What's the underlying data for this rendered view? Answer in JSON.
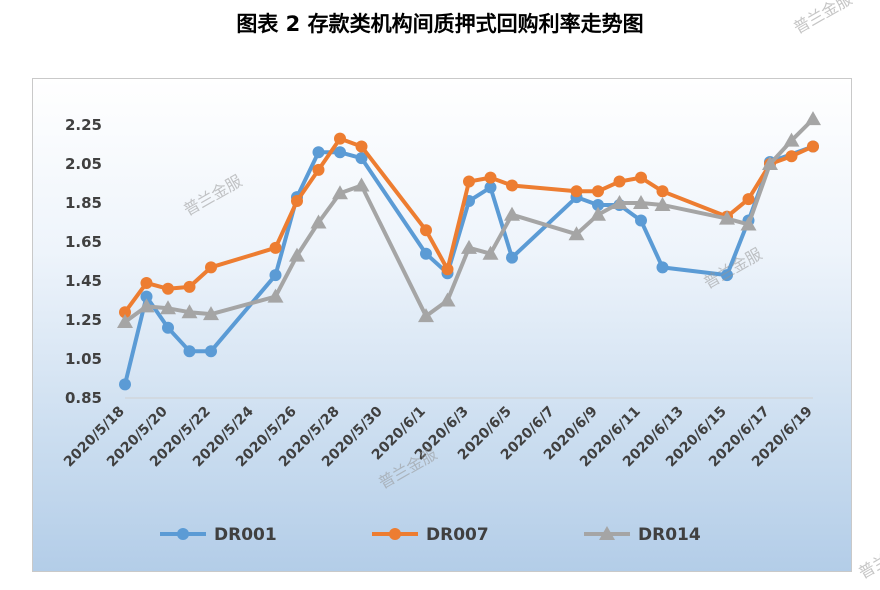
{
  "page": {
    "title": "图表 2  存款类机构间质押式回购利率走势图"
  },
  "watermark": {
    "text": "普兰金服"
  },
  "chart_data": {
    "type": "line",
    "title": "",
    "xlabel": "",
    "ylabel": "",
    "ylim": [
      0.85,
      2.25
    ],
    "y_ticks": [
      0.85,
      1.05,
      1.25,
      1.45,
      1.65,
      1.85,
      2.05,
      2.25
    ],
    "x_tick_labels": [
      "2020/5/18",
      "2020/5/20",
      "2020/5/22",
      "2020/5/24",
      "2020/5/26",
      "2020/5/28",
      "2020/5/30",
      "2020/6/1",
      "2020/6/3",
      "2020/6/5",
      "2020/6/7",
      "2020/6/9",
      "2020/6/11",
      "2020/6/13",
      "2020/6/15",
      "2020/6/17",
      "2020/6/19"
    ],
    "date_range": [
      "2020/5/18",
      "2020/6/19"
    ],
    "legend_position": "bottom",
    "grid": false,
    "series": [
      {
        "name": "DR001",
        "color": "#5b9bd5",
        "marker": "circle",
        "points": [
          [
            "2020/5/18",
            0.92
          ],
          [
            "2020/5/19",
            1.37
          ],
          [
            "2020/5/20",
            1.21
          ],
          [
            "2020/5/21",
            1.09
          ],
          [
            "2020/5/22",
            1.09
          ],
          [
            "2020/5/25",
            1.48
          ],
          [
            "2020/5/26",
            1.88
          ],
          [
            "2020/5/27",
            2.11
          ],
          [
            "2020/5/28",
            2.11
          ],
          [
            "2020/5/29",
            2.08
          ],
          [
            "2020/6/1",
            1.59
          ],
          [
            "2020/6/2",
            1.49
          ],
          [
            "2020/6/3",
            1.86
          ],
          [
            "2020/6/4",
            1.93
          ],
          [
            "2020/6/5",
            1.57
          ],
          [
            "2020/6/8",
            1.88
          ],
          [
            "2020/6/9",
            1.84
          ],
          [
            "2020/6/10",
            1.84
          ],
          [
            "2020/6/11",
            1.76
          ],
          [
            "2020/6/12",
            1.52
          ],
          [
            "2020/6/15",
            1.48
          ],
          [
            "2020/6/16",
            1.76
          ],
          [
            "2020/6/17",
            2.06
          ],
          [
            "2020/6/19",
            2.14
          ]
        ]
      },
      {
        "name": "DR007",
        "color": "#ed7d31",
        "marker": "circle",
        "points": [
          [
            "2020/5/18",
            1.29
          ],
          [
            "2020/5/19",
            1.44
          ],
          [
            "2020/5/20",
            1.41
          ],
          [
            "2020/5/21",
            1.42
          ],
          [
            "2020/5/22",
            1.52
          ],
          [
            "2020/5/25",
            1.62
          ],
          [
            "2020/5/26",
            1.86
          ],
          [
            "2020/5/27",
            2.02
          ],
          [
            "2020/5/28",
            2.18
          ],
          [
            "2020/5/29",
            2.14
          ],
          [
            "2020/6/1",
            1.71
          ],
          [
            "2020/6/2",
            1.51
          ],
          [
            "2020/6/3",
            1.96
          ],
          [
            "2020/6/4",
            1.98
          ],
          [
            "2020/6/5",
            1.94
          ],
          [
            "2020/6/8",
            1.91
          ],
          [
            "2020/6/9",
            1.91
          ],
          [
            "2020/6/10",
            1.96
          ],
          [
            "2020/6/11",
            1.98
          ],
          [
            "2020/6/12",
            1.91
          ],
          [
            "2020/6/15",
            1.78
          ],
          [
            "2020/6/16",
            1.87
          ],
          [
            "2020/6/17",
            2.05
          ],
          [
            "2020/6/18",
            2.09
          ],
          [
            "2020/6/19",
            2.14
          ]
        ]
      },
      {
        "name": "DR014",
        "color": "#a5a5a5",
        "marker": "triangle",
        "points": [
          [
            "2020/5/18",
            1.24
          ],
          [
            "2020/5/19",
            1.32
          ],
          [
            "2020/5/20",
            1.31
          ],
          [
            "2020/5/21",
            1.29
          ],
          [
            "2020/5/22",
            1.28
          ],
          [
            "2020/5/25",
            1.37
          ],
          [
            "2020/5/26",
            1.58
          ],
          [
            "2020/5/27",
            1.75
          ],
          [
            "2020/5/28",
            1.9
          ],
          [
            "2020/5/29",
            1.94
          ],
          [
            "2020/6/1",
            1.27
          ],
          [
            "2020/6/2",
            1.35
          ],
          [
            "2020/6/3",
            1.62
          ],
          [
            "2020/6/4",
            1.59
          ],
          [
            "2020/6/5",
            1.79
          ],
          [
            "2020/6/8",
            1.69
          ],
          [
            "2020/6/9",
            1.79
          ],
          [
            "2020/6/10",
            1.85
          ],
          [
            "2020/6/11",
            1.85
          ],
          [
            "2020/6/12",
            1.84
          ],
          [
            "2020/6/15",
            1.77
          ],
          [
            "2020/6/16",
            1.74
          ],
          [
            "2020/6/17",
            2.05
          ],
          [
            "2020/6/18",
            2.17
          ],
          [
            "2020/6/19",
            2.28
          ]
        ]
      }
    ]
  }
}
